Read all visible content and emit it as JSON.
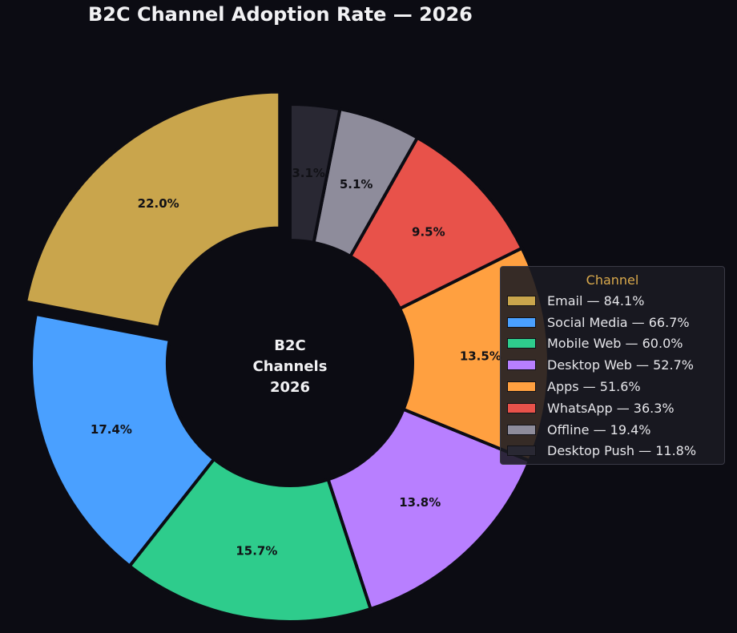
{
  "chart_data": {
    "type": "pie",
    "style": "donut",
    "title": "B2C Channel Adoption Rate — 2026",
    "center_label": [
      "B2C",
      "Channels",
      "2026"
    ],
    "legend_title": "Channel",
    "legend_position": "right",
    "slices": [
      {
        "name": "Email",
        "adoption_rate": 84.1,
        "share": 22.0,
        "share_label": "22.0%",
        "legend_label": "Email — 84.1%",
        "color": "#c9a54c",
        "exploded": true
      },
      {
        "name": "Social Media",
        "adoption_rate": 66.7,
        "share": 17.4,
        "share_label": "17.4%",
        "legend_label": "Social Media — 66.7%",
        "color": "#4aa0ff",
        "exploded": false
      },
      {
        "name": "Mobile Web",
        "adoption_rate": 60.0,
        "share": 15.7,
        "share_label": "15.7%",
        "legend_label": "Mobile Web — 60.0%",
        "color": "#2ecc8c",
        "exploded": false
      },
      {
        "name": "Desktop Web",
        "adoption_rate": 52.7,
        "share": 13.8,
        "share_label": "13.8%",
        "legend_label": "Desktop Web — 52.7%",
        "color": "#b87fff",
        "exploded": false
      },
      {
        "name": "Apps",
        "adoption_rate": 51.6,
        "share": 13.5,
        "share_label": "13.5%",
        "legend_label": "Apps — 51.6%",
        "color": "#ffa040",
        "exploded": false
      },
      {
        "name": "WhatsApp",
        "adoption_rate": 36.3,
        "share": 9.5,
        "share_label": "9.5%",
        "legend_label": "WhatsApp — 36.3%",
        "color": "#e8524a",
        "exploded": false
      },
      {
        "name": "Offline",
        "adoption_rate": 19.4,
        "share": 5.1,
        "share_label": "5.1%",
        "legend_label": "Offline — 19.4%",
        "color": "#8e8c9b",
        "exploded": false
      },
      {
        "name": "Desktop Push",
        "adoption_rate": 11.8,
        "share": 3.1,
        "share_label": "3.1%",
        "legend_label": "Desktop Push — 11.8%",
        "color": "#292833",
        "exploded": false
      }
    ]
  }
}
